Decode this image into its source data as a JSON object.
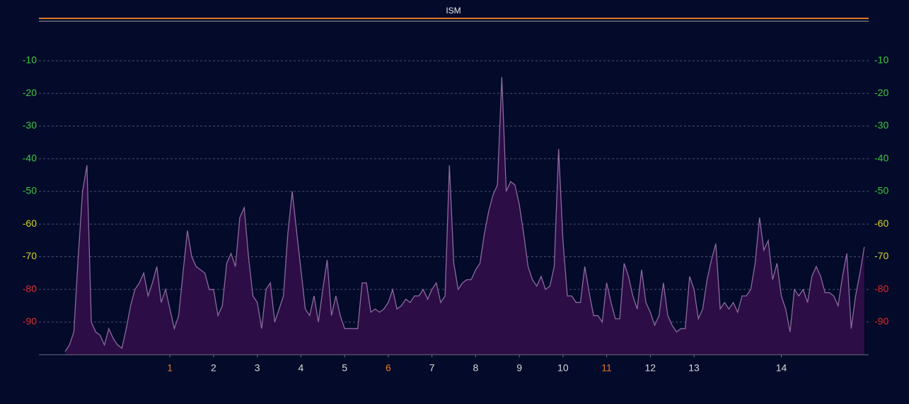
{
  "chart_data": {
    "type": "area",
    "title": "ISM",
    "x": [
      2400,
      2400.5,
      2401,
      2401.5,
      2402,
      2402.5,
      2403,
      2403.5,
      2404,
      2404.5,
      2405,
      2405.5,
      2406,
      2406.5,
      2407,
      2407.5,
      2408,
      2408.5,
      2409,
      2409.5,
      2410,
      2410.5,
      2411,
      2411.5,
      2412,
      2412.5,
      2413,
      2413.5,
      2414,
      2414.5,
      2415,
      2415.5,
      2416,
      2416.5,
      2417,
      2417.5,
      2418,
      2418.5,
      2419,
      2419.5,
      2420,
      2420.5,
      2421,
      2421.5,
      2422,
      2422.5,
      2423,
      2423.5,
      2424,
      2424.5,
      2425,
      2425.5,
      2426,
      2426.5,
      2427,
      2427.5,
      2428,
      2428.5,
      2429,
      2429.5,
      2430,
      2430.5,
      2431,
      2431.5,
      2432,
      2432.5,
      2433,
      2433.5,
      2434,
      2434.5,
      2435,
      2435.5,
      2436,
      2436.5,
      2437,
      2437.5,
      2438,
      2438.5,
      2439,
      2439.5,
      2440,
      2440.5,
      2441,
      2441.5,
      2442,
      2442.5,
      2443,
      2443.5,
      2444,
      2444.5,
      2445,
      2445.5,
      2446,
      2446.5,
      2447,
      2447.5,
      2448,
      2448.5,
      2449,
      2449.5,
      2450,
      2450.5,
      2451,
      2451.5,
      2452,
      2452.5,
      2453,
      2453.5,
      2454,
      2454.5,
      2455,
      2455.5,
      2456,
      2456.5,
      2457,
      2457.5,
      2458,
      2458.5,
      2459,
      2459.5,
      2460,
      2460.5,
      2461,
      2461.5,
      2462,
      2462.5,
      2463,
      2463.5,
      2464,
      2464.5,
      2465,
      2465.5,
      2466,
      2466.5,
      2467,
      2467.5,
      2468,
      2468.5,
      2469,
      2469.5,
      2470,
      2470.5,
      2471,
      2471.5,
      2472,
      2472.5,
      2473,
      2473.5,
      2474,
      2474.5,
      2475,
      2475.5,
      2476,
      2476.5,
      2477,
      2477.5,
      2478,
      2478.5,
      2479,
      2479.5,
      2480,
      2480.5,
      2481,
      2481.5,
      2482,
      2482.5,
      2483,
      2483.5,
      2484,
      2484.5,
      2485,
      2485.5,
      2486,
      2486.5,
      2487,
      2487.5,
      2488,
      2488.5,
      2489,
      2489.5,
      2490,
      2490.5,
      2491,
      2491.5
    ],
    "values": [
      -99,
      -97,
      -93,
      -70,
      -50,
      -42,
      -90,
      -93,
      -94,
      -97,
      -92,
      -95,
      -97,
      -98,
      -92,
      -85,
      -80,
      -78,
      -75,
      -82,
      -78,
      -73,
      -84,
      -80,
      -86,
      -92,
      -88,
      -75,
      -62,
      -70,
      -73,
      -74,
      -75,
      -80,
      -80,
      -88,
      -85,
      -72,
      -69,
      -73,
      -58,
      -55,
      -70,
      -82,
      -84,
      -92,
      -80,
      -78,
      -90,
      -86,
      -82,
      -63,
      -50,
      -62,
      -74,
      -86,
      -88,
      -82,
      -90,
      -80,
      -71,
      -88,
      -82,
      -88,
      -92,
      -92,
      -92,
      -92,
      -78,
      -78,
      -87,
      -86,
      -87,
      -86,
      -84,
      -80,
      -86,
      -85,
      -83,
      -84,
      -82,
      -82,
      -80,
      -83,
      -80,
      -78,
      -84,
      -82,
      -42,
      -72,
      -80,
      -78,
      -77,
      -77,
      -74,
      -72,
      -63,
      -56,
      -51,
      -48,
      -15,
      -50,
      -47,
      -48,
      -54,
      -63,
      -73,
      -77,
      -79,
      -76,
      -80,
      -79,
      -73,
      -37,
      -65,
      -82,
      -82,
      -84,
      -84,
      -73,
      -81,
      -88,
      -88,
      -90,
      -78,
      -84,
      -89,
      -89,
      -72,
      -76,
      -82,
      -86,
      -74,
      -84,
      -87,
      -91,
      -88,
      -78,
      -88,
      -91,
      -93,
      -92,
      -92,
      -76,
      -80,
      -89,
      -86,
      -77,
      -71,
      -66,
      -86,
      -84,
      -86,
      -84,
      -87,
      -82,
      -82,
      -80,
      -72,
      -58,
      -68,
      -65,
      -77,
      -72,
      -82,
      -86,
      -93,
      -80,
      -82,
      -80,
      -84,
      -76,
      -73,
      -76,
      -81,
      -81,
      -82,
      -85,
      -76,
      -69,
      -92,
      -82,
      -75,
      -67
    ],
    "color": "#2c0d46",
    "line_color": "#8b6b9c",
    "xlim": [
      2397,
      2492
    ],
    "xticks": [
      {
        "value": 2412,
        "label": "1"
      },
      {
        "value": 2417,
        "label": "2"
      },
      {
        "value": 2422,
        "label": "3"
      },
      {
        "value": 2427,
        "label": "4"
      },
      {
        "value": 2432,
        "label": "5"
      },
      {
        "value": 2437,
        "label": "6"
      },
      {
        "value": 2442,
        "label": "7"
      },
      {
        "value": 2447,
        "label": "8"
      },
      {
        "value": 2452,
        "label": "9"
      },
      {
        "value": 2457,
        "label": "10"
      },
      {
        "value": 2462,
        "label": "11"
      },
      {
        "value": 2467,
        "label": "12"
      },
      {
        "value": 2472,
        "label": "13"
      },
      {
        "value": 2482,
        "label": "14"
      }
    ],
    "xtick_colors": [
      "#e0782a",
      "#d8d8d8",
      "#d8d8d8",
      "#d8d8d8",
      "#d8d8d8",
      "#e0782a",
      "#d8d8d8",
      "#d8d8d8",
      "#d8d8d8",
      "#d8d8d8",
      "#e0782a",
      "#d8d8d8",
      "#d8d8d8",
      "#d8d8d8"
    ],
    "ylim": [
      -100,
      0
    ],
    "yticks": [
      -10,
      -20,
      -30,
      -40,
      -50,
      -60,
      -70,
      -80,
      -90
    ],
    "ytick_colors": [
      "#3ec93e",
      "#3ec93e",
      "#3ec93e",
      "#3ec93e",
      "#3ec93e",
      "#d6d61e",
      "#d6d61e",
      "#e42a2a",
      "#e42a2a"
    ],
    "grid": true
  }
}
